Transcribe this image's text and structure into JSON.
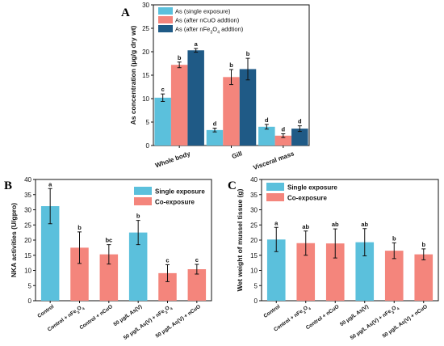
{
  "colors": {
    "light_blue": "#5bc0dc",
    "salmon": "#f4857c",
    "dark_blue": "#1f5a86",
    "axis": "#111111"
  },
  "chart_data": [
    {
      "panel": "A",
      "type": "bar",
      "ylabel": "As concentration (μg/g dry wt)",
      "ylim": [
        0,
        30
      ],
      "yticks": [
        0,
        5,
        10,
        15,
        20,
        25,
        30
      ],
      "categories": [
        "Whole body",
        "Gill",
        "Visceral mass"
      ],
      "legend_position": "top-right",
      "series": [
        {
          "name": "As (single exposure)",
          "values": [
            10.2,
            3.3,
            4.0
          ],
          "errors": [
            0.8,
            0.4,
            0.5
          ],
          "letters": [
            "c",
            "d",
            "d"
          ],
          "color": "#5bc0dc"
        },
        {
          "name": "As (after nCuO addtion)",
          "values": [
            17.2,
            14.6,
            2.1
          ],
          "errors": [
            0.6,
            1.6,
            0.4
          ],
          "letters": [
            "b",
            "b",
            "d"
          ],
          "color": "#f4857c"
        },
        {
          "name": "As (after nFe3O4 addtion)",
          "values": [
            20.3,
            16.3,
            3.6
          ],
          "errors": [
            0.4,
            2.3,
            0.6
          ],
          "letters": [
            "a",
            "b",
            "d"
          ],
          "color": "#1f5a86"
        }
      ]
    },
    {
      "panel": "B",
      "type": "bar",
      "ylabel": "NKA activities (U/gpro)",
      "ylim": [
        0,
        40
      ],
      "yticks": [
        0,
        5,
        10,
        15,
        20,
        25,
        30,
        35,
        40
      ],
      "categories": [
        "Control",
        "Control + nFe3O4",
        "Control + nCuO",
        "50 μg/L As(V)",
        "50 μg/L As(V) + nFe3O4",
        "50 μg/L As(V) + nCuO"
      ],
      "values": [
        31.2,
        17.5,
        15.3,
        22.5,
        9.1,
        10.4
      ],
      "errors": [
        5.8,
        5.2,
        3.2,
        4.0,
        2.8,
        1.6
      ],
      "letters": [
        "a",
        "b",
        "bc",
        "b",
        "c",
        "c"
      ],
      "bar_groups": [
        "single",
        "co",
        "co",
        "single",
        "co",
        "co"
      ],
      "legend": [
        {
          "name": "Single exposure",
          "color": "#5bc0dc"
        },
        {
          "name": "Co-exposure",
          "color": "#f4857c"
        }
      ],
      "legend_position": "top-right"
    },
    {
      "panel": "C",
      "type": "bar",
      "ylabel": "Wet weight of mussel tissue (g)",
      "ylim": [
        0,
        40
      ],
      "yticks": [
        0,
        5,
        10,
        15,
        20,
        25,
        30,
        35,
        40
      ],
      "categories": [
        "Control",
        "Control + nFe3O4",
        "Control + nCuO",
        "50 μg/L As(V)",
        "50 μg/L As(V) + nFe3O4",
        "50 μg/L As(V) + nCuO"
      ],
      "values": [
        20.2,
        19.0,
        18.9,
        19.3,
        16.5,
        15.3
      ],
      "errors": [
        4.0,
        4.0,
        4.8,
        4.5,
        2.6,
        1.8
      ],
      "letters": [
        "a",
        "ab",
        "ab",
        "ab",
        "b",
        "b"
      ],
      "bar_groups": [
        "single",
        "co",
        "co",
        "single",
        "co",
        "co"
      ],
      "legend": [
        {
          "name": "Single exposure",
          "color": "#5bc0dc"
        },
        {
          "name": "Co-exposure",
          "color": "#f4857c"
        }
      ],
      "legend_position": "top-left"
    }
  ]
}
